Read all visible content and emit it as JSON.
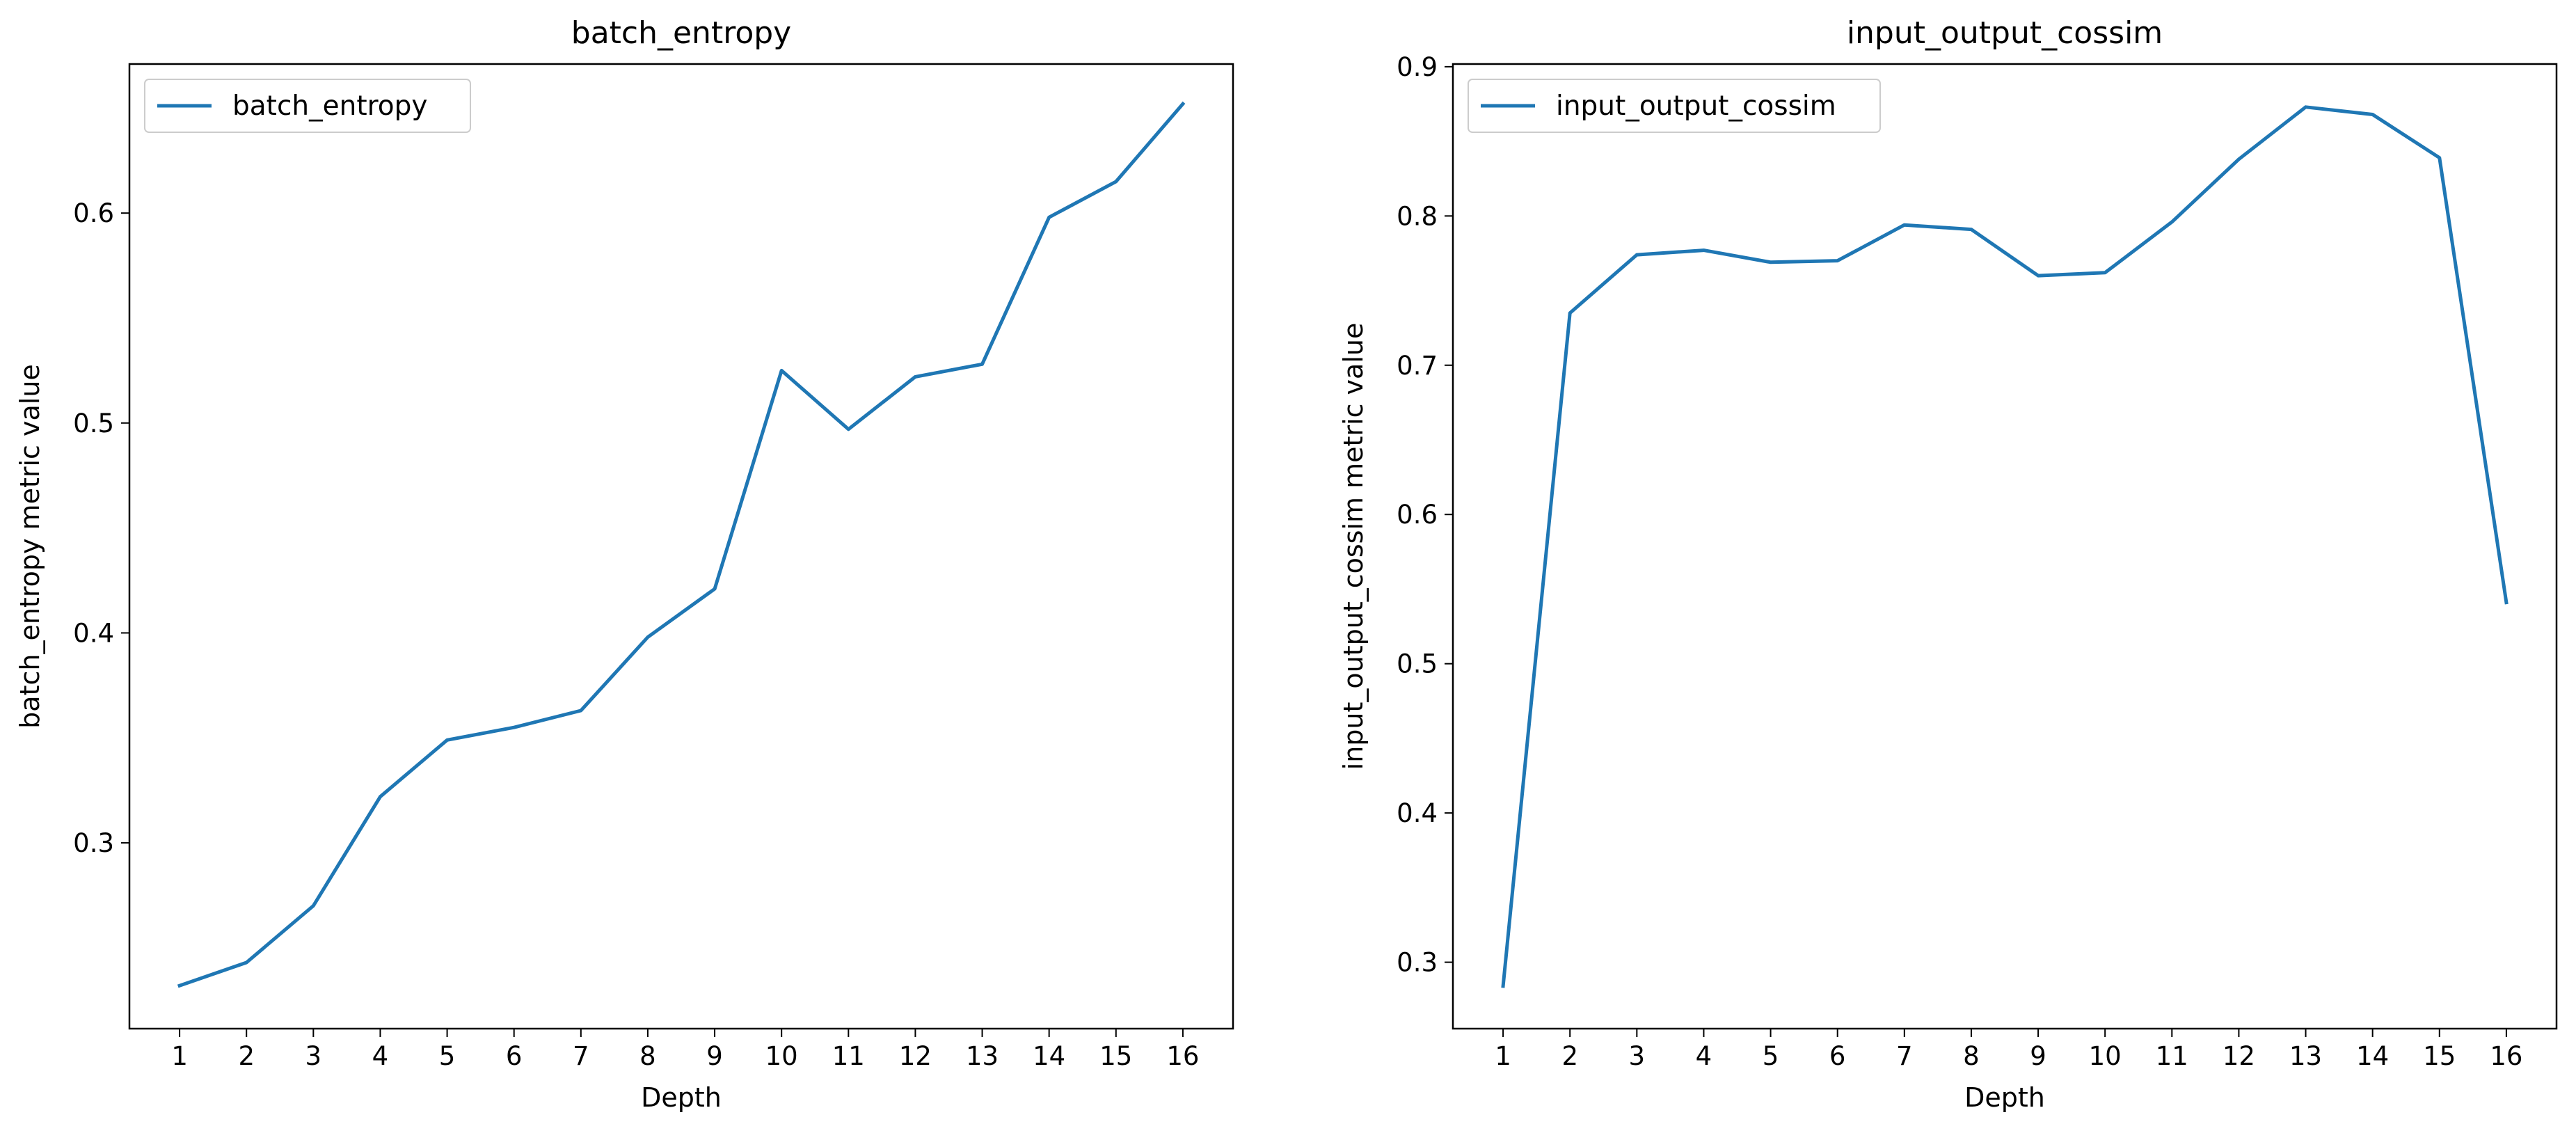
{
  "chart_data": [
    {
      "type": "line",
      "title": "batch_entropy",
      "xlabel": "Depth",
      "ylabel": "batch_entropy metric value",
      "x": [
        1,
        2,
        3,
        4,
        5,
        6,
        7,
        8,
        9,
        10,
        11,
        12,
        13,
        14,
        15,
        16
      ],
      "xlim": [
        0.25,
        16.75
      ],
      "ylim": [
        0.2115,
        0.671
      ],
      "yticks": [
        0.3,
        0.4,
        0.5,
        0.6
      ],
      "yticklabels": [
        "0.3",
        "0.4",
        "0.5",
        "0.6"
      ],
      "legend": "top-left",
      "grid": false,
      "series": [
        {
          "name": "batch_entropy",
          "color": "#1f77b4",
          "values": [
            0.232,
            0.243,
            0.27,
            0.322,
            0.349,
            0.355,
            0.363,
            0.398,
            0.421,
            0.525,
            0.497,
            0.522,
            0.528,
            0.598,
            0.615,
            0.652
          ]
        }
      ]
    },
    {
      "type": "line",
      "title": "input_output_cossim",
      "xlabel": "Depth",
      "ylabel": "input_output_cossim metric value",
      "x": [
        1,
        2,
        3,
        4,
        5,
        6,
        7,
        8,
        9,
        10,
        11,
        12,
        13,
        14,
        15,
        16
      ],
      "xlim": [
        0.25,
        16.75
      ],
      "ylim": [
        0.2555,
        0.9018
      ],
      "yticks": [
        0.3,
        0.4,
        0.5,
        0.6,
        0.7,
        0.8,
        0.9
      ],
      "yticklabels": [
        "0.3",
        "0.4",
        "0.5",
        "0.6",
        "0.7",
        "0.8",
        "0.9"
      ],
      "legend": "top-left",
      "grid": false,
      "series": [
        {
          "name": "input_output_cossim",
          "color": "#1f77b4",
          "values": [
            0.284,
            0.735,
            0.774,
            0.777,
            0.769,
            0.77,
            0.794,
            0.791,
            0.76,
            0.762,
            0.796,
            0.838,
            0.873,
            0.868,
            0.839,
            0.541
          ]
        }
      ]
    }
  ]
}
